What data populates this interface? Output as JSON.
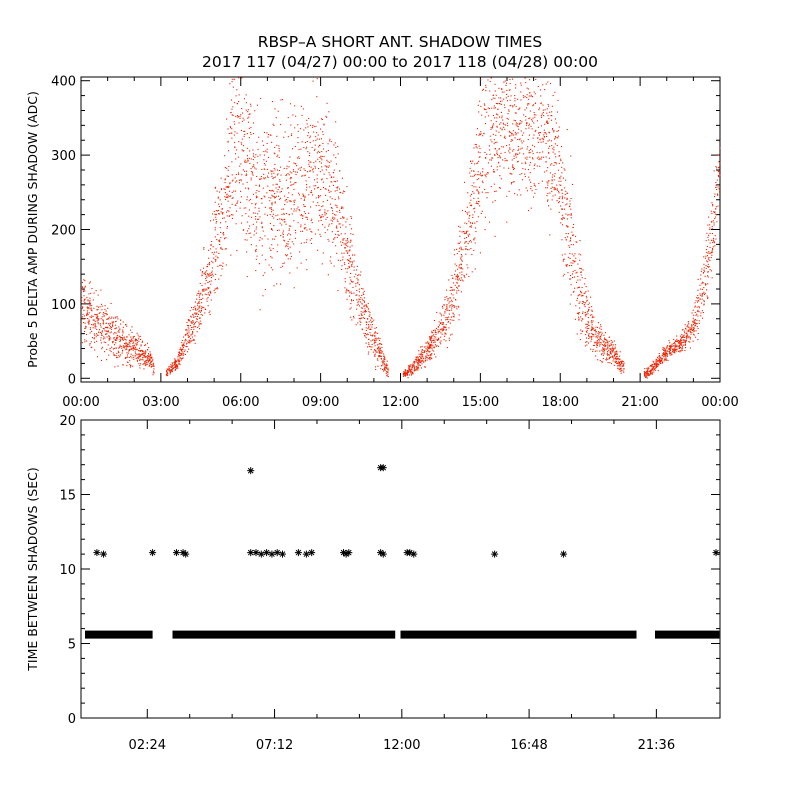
{
  "title_line1": "RBSP–A SHORT ANT. SHADOW TIMES",
  "title_line2": "2017 117 (04/27) 00:00 to 2017 118 (04/28) 00:00",
  "colors": {
    "top_points": "#ee2200",
    "bottom_points": "#000000",
    "axes": "#000000"
  },
  "chart_data": [
    {
      "type": "scatter",
      "title": "",
      "ylabel": "Probe 5 DELTA AMP DURING SHADOW (ADC)",
      "xlabel": "",
      "x_unit": "hours",
      "xlim": [
        0,
        24
      ],
      "ylim": [
        -5,
        405
      ],
      "x_ticks": [
        0,
        3,
        6,
        9,
        12,
        15,
        18,
        21,
        24
      ],
      "x_tick_labels": [
        "00:00",
        "03:00",
        "06:00",
        "09:00",
        "12:00",
        "15:00",
        "18:00",
        "21:00",
        "00:00"
      ],
      "y_ticks": [
        0,
        100,
        200,
        300,
        400
      ],
      "y_tick_labels": [
        "0",
        "100",
        "200",
        "300",
        "400"
      ],
      "grid": false,
      "marker": "dot",
      "color": "#ee2200",
      "series": [
        {
          "kind": "band",
          "points": [
            [
              0,
              95,
              45
            ],
            [
              0.5,
              80,
              45
            ],
            [
              1,
              65,
              40
            ],
            [
              1.5,
              50,
              32
            ],
            [
              2,
              40,
              25
            ],
            [
              2.4,
              30,
              18
            ],
            [
              2.6,
              25,
              15
            ],
            [
              2.75,
              10,
              10
            ]
          ]
        },
        {
          "kind": "band",
          "points": [
            [
              3.2,
              5,
              6
            ],
            [
              3.6,
              20,
              10
            ],
            [
              4,
              55,
              25
            ],
            [
              4.4,
              90,
              40
            ],
            [
              4.8,
              140,
              60
            ],
            [
              5.2,
              200,
              90
            ],
            [
              5.5,
              260,
              120
            ],
            [
              5.9,
              320,
              150
            ],
            [
              6.3,
              280,
              140
            ],
            [
              6.8,
              240,
              130
            ],
            [
              7.2,
              240,
              120
            ],
            [
              7.7,
              250,
              120
            ],
            [
              8.2,
              260,
              110
            ],
            [
              8.7,
              270,
              120
            ],
            [
              9.2,
              260,
              110
            ],
            [
              9.6,
              230,
              100
            ],
            [
              10,
              170,
              80
            ],
            [
              10.4,
              110,
              55
            ],
            [
              10.8,
              70,
              40
            ],
            [
              11.2,
              35,
              25
            ],
            [
              11.55,
              8,
              8
            ]
          ]
        },
        {
          "kind": "band",
          "points": [
            [
              12.1,
              5,
              6
            ],
            [
              12.5,
              15,
              10
            ],
            [
              13,
              35,
              20
            ],
            [
              13.5,
              65,
              30
            ],
            [
              14,
              110,
              50
            ],
            [
              14.4,
              180,
              70
            ],
            [
              14.8,
              260,
              100
            ],
            [
              15.2,
              320,
              120
            ],
            [
              15.7,
              340,
              110
            ],
            [
              16.2,
              340,
              100
            ],
            [
              16.8,
              330,
              110
            ],
            [
              17.3,
              330,
              100
            ],
            [
              17.8,
              300,
              110
            ],
            [
              18.2,
              220,
              100
            ],
            [
              18.6,
              140,
              80
            ],
            [
              19,
              80,
              45
            ],
            [
              19.4,
              55,
              30
            ],
            [
              19.8,
              40,
              20
            ],
            [
              20.2,
              25,
              15
            ],
            [
              20.4,
              15,
              10
            ]
          ]
        },
        {
          "kind": "band",
          "points": [
            [
              21.15,
              5,
              6
            ],
            [
              21.5,
              15,
              10
            ],
            [
              22,
              35,
              12
            ],
            [
              22.5,
              45,
              12
            ],
            [
              23,
              70,
              25
            ],
            [
              23.4,
              130,
              50
            ],
            [
              23.7,
              190,
              60
            ],
            [
              24,
              280,
              60
            ]
          ]
        }
      ]
    },
    {
      "type": "scatter",
      "title": "",
      "ylabel": "TIME BETWEEN SHADOWS (SEC)",
      "xlabel": "",
      "x_unit": "hours",
      "xlim": [
        -0.1,
        24
      ],
      "ylim": [
        0,
        20
      ],
      "x_ticks": [
        2.4,
        7.2,
        12,
        16.8,
        21.6
      ],
      "x_tick_labels": [
        "02:24",
        "07:12",
        "12:00",
        "16:48",
        "21:36"
      ],
      "y_ticks": [
        0,
        5,
        10,
        15,
        20
      ],
      "y_tick_labels": [
        "0",
        "5",
        "10",
        "15",
        "20"
      ],
      "grid": false,
      "marker": "asterisk",
      "color": "#000000",
      "baseline_value": 5.6,
      "baseline_segments": [
        [
          0.05,
          2.6
        ],
        [
          3.35,
          11.75
        ],
        [
          11.95,
          20.85
        ],
        [
          21.55,
          23.98
        ]
      ],
      "outliers": [
        [
          0.5,
          11.1
        ],
        [
          0.75,
          11.0
        ],
        [
          2.6,
          11.1
        ],
        [
          3.5,
          11.1
        ],
        [
          3.75,
          11.1
        ],
        [
          3.85,
          11.0
        ],
        [
          6.3,
          16.6
        ],
        [
          6.3,
          11.1
        ],
        [
          6.5,
          11.1
        ],
        [
          6.7,
          11.0
        ],
        [
          6.9,
          11.1
        ],
        [
          7.1,
          11.0
        ],
        [
          7.3,
          11.1
        ],
        [
          7.5,
          11.0
        ],
        [
          8.1,
          11.1
        ],
        [
          8.4,
          11.0
        ],
        [
          8.6,
          11.1
        ],
        [
          9.8,
          11.1
        ],
        [
          9.9,
          11.0
        ],
        [
          10,
          11.1
        ],
        [
          11.2,
          16.8
        ],
        [
          11.3,
          16.8
        ],
        [
          11.2,
          11.1
        ],
        [
          11.3,
          11.0
        ],
        [
          12.2,
          11.1
        ],
        [
          12.3,
          11.1
        ],
        [
          12.45,
          11.0
        ],
        [
          15.5,
          11.0
        ],
        [
          18.1,
          11.0
        ],
        [
          23.85,
          11.1
        ]
      ]
    }
  ]
}
